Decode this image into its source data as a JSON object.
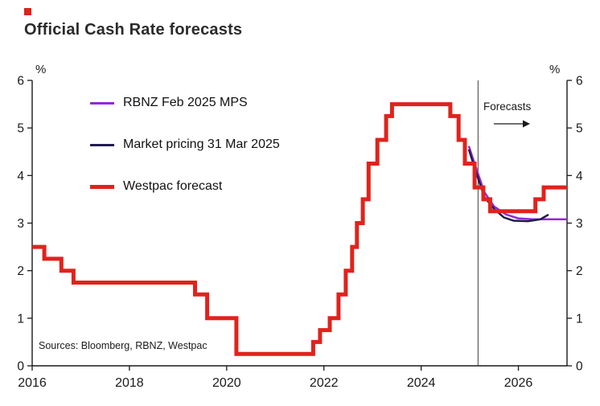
{
  "title": "Official Cash Rate forecasts",
  "accent_color": "#e0231c",
  "axis": {
    "percent_left": "%",
    "percent_right": "%"
  },
  "annotations": {
    "forecasts_label": "Forecasts",
    "sources": "Sources: Bloomberg, RBNZ, Westpac"
  },
  "legend": [
    {
      "label": "RBNZ Feb 2025 MPS",
      "color": "#9428d8"
    },
    {
      "label": "Market pricing 31 Mar 2025",
      "color": "#201c4e"
    },
    {
      "label": "Westpac forecast",
      "color": "#e0231c"
    }
  ],
  "chart_data": {
    "type": "line",
    "title": "Official Cash Rate forecasts",
    "xlabel": "",
    "ylabel": "%",
    "xlim": [
      2016,
      2027
    ],
    "ylim": [
      0,
      6
    ],
    "x_ticks": [
      2016,
      2018,
      2020,
      2022,
      2024,
      2026
    ],
    "y_ticks": [
      0,
      1,
      2,
      3,
      4,
      5,
      6
    ],
    "grid": false,
    "legend_position": "upper-left",
    "forecast_divider_x": 2025.17,
    "series": [
      {
        "name": "RBNZ Feb 2025 MPS",
        "color": "#9428d8",
        "width": 2.5,
        "step": false,
        "points": [
          [
            2024.98,
            4.62
          ],
          [
            2025.1,
            4.25
          ],
          [
            2025.3,
            3.65
          ],
          [
            2025.5,
            3.35
          ],
          [
            2025.75,
            3.18
          ],
          [
            2026.0,
            3.1
          ],
          [
            2026.3,
            3.08
          ],
          [
            2027.0,
            3.08
          ]
        ]
      },
      {
        "name": "Market pricing 31 Mar 2025",
        "color": "#201c4e",
        "width": 2.5,
        "step": false,
        "points": [
          [
            2024.98,
            4.55
          ],
          [
            2025.12,
            4.1
          ],
          [
            2025.3,
            3.55
          ],
          [
            2025.5,
            3.3
          ],
          [
            2025.7,
            3.12
          ],
          [
            2025.9,
            3.05
          ],
          [
            2026.2,
            3.04
          ],
          [
            2026.45,
            3.08
          ],
          [
            2026.62,
            3.18
          ]
        ]
      },
      {
        "name": "Westpac forecast",
        "color": "#e0231c",
        "width": 5,
        "step": true,
        "points": [
          [
            2016.0,
            2.5
          ],
          [
            2016.25,
            2.25
          ],
          [
            2016.6,
            2.0
          ],
          [
            2016.85,
            1.75
          ],
          [
            2019.35,
            1.5
          ],
          [
            2019.6,
            1.0
          ],
          [
            2020.2,
            0.25
          ],
          [
            2021.78,
            0.5
          ],
          [
            2021.92,
            0.75
          ],
          [
            2022.12,
            1.0
          ],
          [
            2022.3,
            1.5
          ],
          [
            2022.45,
            2.0
          ],
          [
            2022.58,
            2.5
          ],
          [
            2022.68,
            3.0
          ],
          [
            2022.8,
            3.5
          ],
          [
            2022.92,
            4.25
          ],
          [
            2023.1,
            4.75
          ],
          [
            2023.28,
            5.25
          ],
          [
            2023.4,
            5.5
          ],
          [
            2024.6,
            5.25
          ],
          [
            2024.77,
            4.75
          ],
          [
            2024.9,
            4.25
          ],
          [
            2025.1,
            3.75
          ],
          [
            2025.28,
            3.5
          ],
          [
            2025.42,
            3.25
          ],
          [
            2026.35,
            3.5
          ],
          [
            2026.52,
            3.75
          ],
          [
            2027.0,
            3.75
          ]
        ]
      }
    ]
  }
}
